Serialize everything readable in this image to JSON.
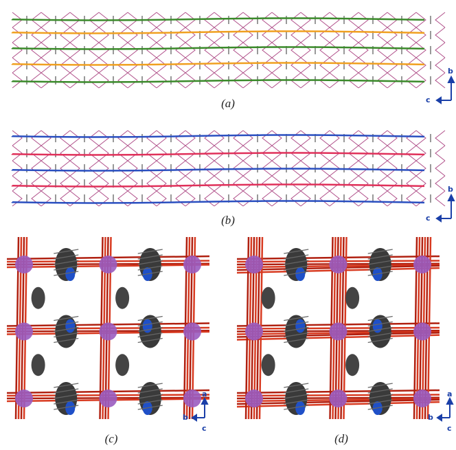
{
  "panels": [
    {
      "caption": "(a)",
      "axes": [
        "b",
        "c"
      ]
    },
    {
      "caption": "(b)",
      "axes": [
        "b",
        "c"
      ]
    },
    {
      "caption": "(c)",
      "axes": [
        "a",
        "b",
        "c"
      ]
    },
    {
      "caption": "(d)",
      "axes": [
        "a",
        "b",
        "c"
      ]
    }
  ]
}
